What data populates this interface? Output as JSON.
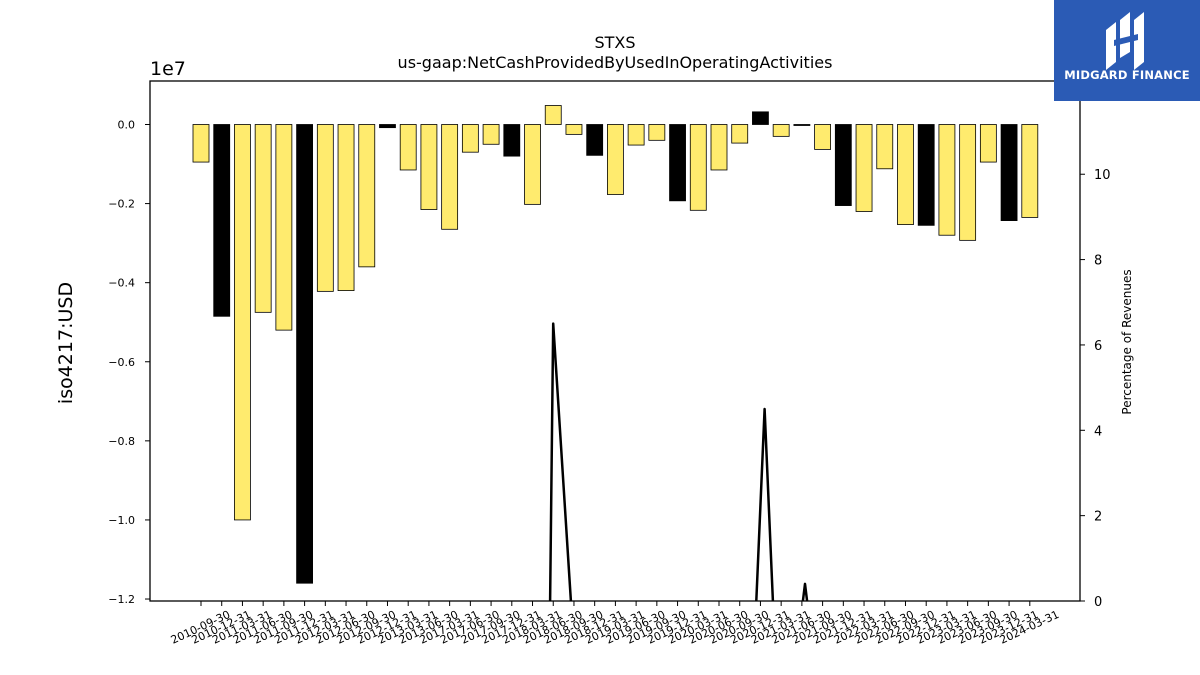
{
  "chart_data": {
    "type": "bar",
    "title": "STXS",
    "subtitle": "us-gaap:NetCashProvidedByUsedInOperatingActivities",
    "ylabel": "iso4217:USD",
    "ylabel_right": "Percentage of Revenues",
    "y_offset_label": "1e7",
    "ylim": [
      -12.05,
      1.1
    ],
    "ylim_right": [
      0,
      12
    ],
    "yticks": [
      "0.0",
      "−0.2",
      "−0.4",
      "−0.6",
      "−0.8",
      "−1.0",
      "−1.2"
    ],
    "yticks_right": [
      "0",
      "2",
      "4",
      "6",
      "8",
      "10"
    ],
    "categories": [
      "2010-09-30",
      "2010-12-31",
      "2011-03-31",
      "2011-06-30",
      "2011-09-30",
      "2011-12-31",
      "2012-03-31",
      "2012-06-30",
      "2012-09-30",
      "2012-12-31",
      "2013-03-31",
      "2013-06-30",
      "2017-03-31",
      "2017-06-30",
      "2017-09-30",
      "2017-12-31",
      "2018-03-31",
      "2018-06-30",
      "2018-09-30",
      "2018-12-31",
      "2019-03-31",
      "2019-06-30",
      "2019-09-30",
      "2019-12-31",
      "2020-03-31",
      "2020-06-30",
      "2020-09-30",
      "2020-12-31",
      "2021-03-31",
      "2021-06-30",
      "2021-09-30",
      "2021-12-31",
      "2022-03-31",
      "2022-06-30",
      "2022-09-30",
      "2022-12-31",
      "2023-03-31",
      "2023-06-30",
      "2023-09-30",
      "2023-12-31",
      "2024-03-31"
    ],
    "values": [
      -0.95,
      -4.85,
      -10.0,
      -4.75,
      -5.2,
      -11.6,
      -4.22,
      -4.2,
      -3.6,
      -0.08,
      -1.15,
      -2.15,
      -2.65,
      -0.7,
      -0.5,
      -0.8,
      -2.02,
      0.48,
      -0.25,
      -0.78,
      -1.77,
      -0.52,
      -0.4,
      -1.93,
      -2.17,
      -1.15,
      -0.47,
      0.32,
      -0.3,
      -0.02,
      -0.63,
      -2.05,
      -2.2,
      -1.12,
      -2.53,
      -2.55,
      -2.8,
      -2.93,
      -0.95,
      -2.43,
      -2.35
    ],
    "bar_colors": [
      "#ffeb6e",
      "#000000",
      "#ffeb6e",
      "#ffeb6e",
      "#ffeb6e",
      "#000000",
      "#ffeb6e",
      "#ffeb6e",
      "#ffeb6e",
      "#000000",
      "#ffeb6e",
      "#ffeb6e",
      "#ffeb6e",
      "#ffeb6e",
      "#ffeb6e",
      "#000000",
      "#ffeb6e",
      "#ffeb6e",
      "#ffeb6e",
      "#000000",
      "#ffeb6e",
      "#ffeb6e",
      "#ffeb6e",
      "#000000",
      "#ffeb6e",
      "#ffeb6e",
      "#ffeb6e",
      "#000000",
      "#ffeb6e",
      "#000000",
      "#ffeb6e",
      "#000000",
      "#ffeb6e",
      "#ffeb6e",
      "#ffeb6e",
      "#000000",
      "#ffeb6e",
      "#ffeb6e",
      "#ffeb6e",
      "#000000",
      "#ffeb6e"
    ],
    "line_series": {
      "axis": "right",
      "color": "#000000",
      "points": [
        {
          "category_index": 16.85,
          "value": 0
        },
        {
          "category_index": 17,
          "value": 6.5
        },
        {
          "category_index": 17.85,
          "value": 0
        },
        {
          "category_index": 26.8,
          "value": 0
        },
        {
          "category_index": 27.2,
          "value": 4.5
        },
        {
          "category_index": 27.6,
          "value": 0
        },
        {
          "category_index": 29.05,
          "value": 0
        },
        {
          "category_index": 29.15,
          "value": 0.4
        },
        {
          "category_index": 29.25,
          "value": 0
        }
      ]
    },
    "grid": false,
    "legend": "none"
  },
  "logo": {
    "text": "MIDGARD FINANCE",
    "background": "#2b5bb5"
  }
}
